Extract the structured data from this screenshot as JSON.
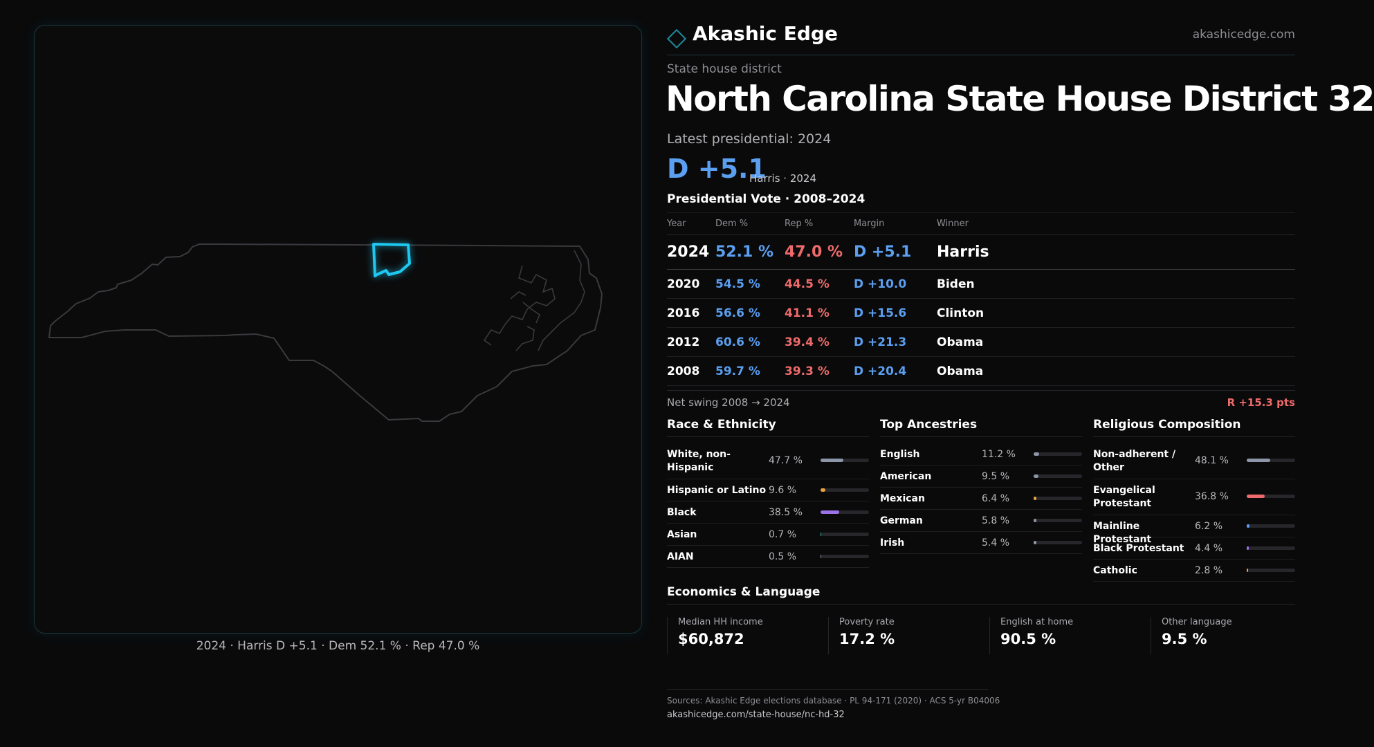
{
  "brand": {
    "name": "Akashic Edge",
    "url": "akashicedge.com"
  },
  "map": {
    "caption": "2024 · Harris D +5.1 · Dem 52.1 % · Rep 47.0 %",
    "outline_color": "#3a3a3e",
    "district_color": "#1ec8f0"
  },
  "district": {
    "kicker": "State house district",
    "title": "North Carolina State House District 32",
    "latest_label": "Latest presidential: 2024",
    "margin": "D +5.1",
    "margin_sub": "Harris · 2024"
  },
  "presidential": {
    "title": "Presidential Vote · 2008–2024",
    "headers": {
      "year": "Year",
      "dem": "Dem %",
      "rep": "Rep %",
      "margin": "Margin",
      "winner": "Winner"
    },
    "rows": [
      {
        "year": "2024",
        "dem": "52.1 %",
        "rep": "47.0 %",
        "margin": "D +5.1",
        "winner": "Harris"
      },
      {
        "year": "2020",
        "dem": "54.5 %",
        "rep": "44.5 %",
        "margin": "D +10.0",
        "winner": "Biden"
      },
      {
        "year": "2016",
        "dem": "56.6 %",
        "rep": "41.1 %",
        "margin": "D +15.6",
        "winner": "Clinton"
      },
      {
        "year": "2012",
        "dem": "60.6 %",
        "rep": "39.4 %",
        "margin": "D +21.3",
        "winner": "Obama"
      },
      {
        "year": "2008",
        "dem": "59.7 %",
        "rep": "39.3 %",
        "margin": "D +20.4",
        "winner": "Obama"
      }
    ],
    "swing_label": "Net swing 2008 → 2024",
    "swing_value": "R +15.3 pts"
  },
  "race": {
    "title": "Race & Ethnicity",
    "rows": [
      {
        "label": "White, non-Hispanic",
        "value": "47.7 %",
        "pct": 47.7,
        "color": "#8d96a8"
      },
      {
        "label": "Hispanic or Latino",
        "value": "9.6 %",
        "pct": 9.6,
        "color": "#e8a33b"
      },
      {
        "label": "Black",
        "value": "38.5 %",
        "pct": 38.5,
        "color": "#9b72e8"
      },
      {
        "label": "Asian",
        "value": "0.7 %",
        "pct": 0.7,
        "color": "#3bb8a8"
      },
      {
        "label": "AIAN",
        "value": "0.5 %",
        "pct": 0.5,
        "color": "#8d96a8"
      }
    ]
  },
  "ancestry": {
    "title": "Top Ancestries",
    "rows": [
      {
        "label": "English",
        "value": "11.2 %",
        "pct": 11.2,
        "color": "#8d96a8"
      },
      {
        "label": "American",
        "value": "9.5 %",
        "pct": 9.5,
        "color": "#8d96a8"
      },
      {
        "label": "Mexican",
        "value": "6.4 %",
        "pct": 6.4,
        "color": "#e8a33b"
      },
      {
        "label": "German",
        "value": "5.8 %",
        "pct": 5.8,
        "color": "#8d96a8"
      },
      {
        "label": "Irish",
        "value": "5.4 %",
        "pct": 5.4,
        "color": "#8d96a8"
      }
    ]
  },
  "religion": {
    "title": "Religious Composition",
    "rows": [
      {
        "label": "Non-adherent / Other",
        "value": "48.1 %",
        "pct": 48.1,
        "color": "#8d96a8"
      },
      {
        "label": "Evangelical Protestant",
        "value": "36.8 %",
        "pct": 36.8,
        "color": "#ef6b6b"
      },
      {
        "label": "Mainline Protestant",
        "value": "6.2 %",
        "pct": 6.2,
        "color": "#5b9ff0"
      },
      {
        "label": "Black Protestant",
        "value": "4.4 %",
        "pct": 4.4,
        "color": "#9b72e8"
      },
      {
        "label": "Catholic",
        "value": "2.8 %",
        "pct": 2.8,
        "color": "#e8a33b"
      }
    ]
  },
  "economics": {
    "title": "Economics & Language",
    "cards": [
      {
        "label": "Median HH income",
        "value": "$60,872"
      },
      {
        "label": "Poverty rate",
        "value": "17.2 %"
      },
      {
        "label": "English at home",
        "value": "90.5 %"
      },
      {
        "label": "Other language",
        "value": "9.5 %"
      }
    ]
  },
  "sources": {
    "text": "Sources: Akashic Edge elections database · PL 94-171 (2020) · ACS 5-yr B04006",
    "url": "akashicedge.com/state-house/nc-hd-32"
  }
}
